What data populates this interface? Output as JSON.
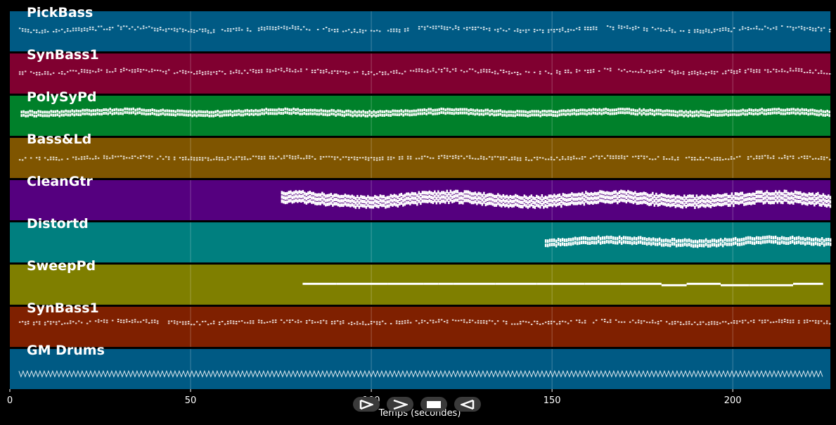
{
  "chart_data": {
    "type": "piano-roll",
    "xlabel": "Temps (secondes)",
    "xlim": [
      0,
      227
    ],
    "xticks": [
      0,
      50,
      100,
      150,
      200
    ],
    "grid": true,
    "tracks": [
      {
        "name": "PickBass",
        "color": "#005a84",
        "start": 2.5,
        "end": 227,
        "style": "dashed",
        "pitch": 0.45,
        "spread": 0.08,
        "thick": 2
      },
      {
        "name": "SynBass1",
        "color": "#800030",
        "start": 2.5,
        "end": 227,
        "style": "dashed",
        "pitch": 0.45,
        "spread": 0.07,
        "thick": 2
      },
      {
        "name": "PolySyPd",
        "color": "#00802a",
        "start": 3,
        "end": 227,
        "style": "dense",
        "pitch": 0.42,
        "spread": 0.06,
        "thick": 4
      },
      {
        "name": "Bass&Ld",
        "color": "#7f5500",
        "start": 2.5,
        "end": 227,
        "style": "dashed",
        "pitch": 0.5,
        "spread": 0.04,
        "thick": 2
      },
      {
        "name": "CleanGtr",
        "color": "#55007f",
        "start": 75,
        "end": 227,
        "style": "block",
        "pitch": 0.48,
        "spread": 0.12,
        "thick": 5
      },
      {
        "name": "Distortd",
        "color": "#007f7f",
        "start": 148,
        "end": 227,
        "style": "dense",
        "pitch": 0.48,
        "spread": 0.08,
        "thick": 5
      },
      {
        "name": "SweepPd",
        "color": "#7f7f00",
        "start": 81,
        "end": 225,
        "style": "solid",
        "pitch": 0.48,
        "spread": 0.03,
        "thick": 3
      },
      {
        "name": "SynBass1",
        "color": "#7f2000",
        "start": 2.5,
        "end": 227,
        "style": "dashed",
        "pitch": 0.38,
        "spread": 0.05,
        "thick": 2
      },
      {
        "name": "GM Drums",
        "color": "#005a84",
        "start": 2.5,
        "end": 225,
        "style": "wave",
        "pitch": 0.62,
        "spread": 0.06,
        "thick": 1
      }
    ]
  },
  "controls": [
    {
      "name": "play-icon"
    },
    {
      "name": "forward-icon"
    },
    {
      "name": "stop-icon"
    },
    {
      "name": "rewind-icon"
    }
  ]
}
